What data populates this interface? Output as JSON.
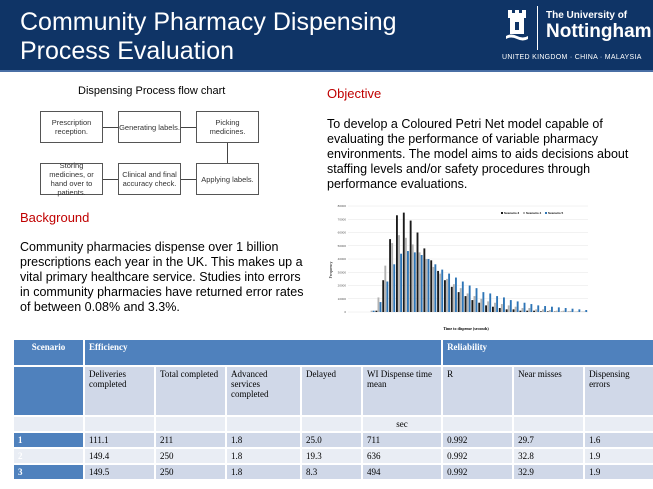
{
  "header": {
    "title": "Community Pharmacy Dispensing Process Evaluation",
    "logo": {
      "line1": "The University of",
      "line2": "Nottingham",
      "line3": "UNITED KINGDOM · CHINA · MALAYSIA"
    }
  },
  "flowchart": {
    "title": "Dispensing Process flow chart",
    "steps": [
      "Prescription reception.",
      "Generating labels.",
      "Picking medicines.",
      "Applying labels.",
      "Clinical and final accuracy check.",
      "Storing medicines, or hand over to patients."
    ]
  },
  "objective": {
    "heading": "Objective",
    "text": "To develop a Coloured Petri Net model capable of evaluating the performance of variable pharmacy environments. The model aims to aids decisions about staffing levels and/or safety procedures through performance evaluations."
  },
  "background": {
    "heading": "Background",
    "text": "Community pharmacies dispense over 1 billion prescriptions each year in the UK. This makes up a vital primary healthcare service. Studies into errors in community pharmacies have returned error rates of between 0.08% and 3.3%."
  },
  "chart_data": {
    "type": "bar",
    "xlabel": "Time to dispense (seconds)",
    "ylabel": "Frequency",
    "ylim": [
      0,
      80000
    ],
    "yticks": [
      0,
      10000,
      20000,
      30000,
      40000,
      50000,
      60000,
      70000,
      80000
    ],
    "grid": true,
    "legend": "top-right",
    "colors": [
      "#1a1a1a",
      "#b3b3b3",
      "#2e75b6"
    ],
    "series": [
      {
        "name": "Scenario 3",
        "values": [
          0,
          0,
          0,
          0,
          1000,
          24000,
          55000,
          73000,
          75000,
          69000,
          60000,
          48000,
          39000,
          31000,
          24000,
          19000,
          15000,
          12000,
          9000,
          7000,
          5000,
          4000,
          3000,
          2000,
          2000,
          1000,
          1000,
          1000,
          500,
          500,
          300,
          200,
          200,
          100,
          100
        ]
      },
      {
        "name": "Scenario 4",
        "values": [
          0,
          0,
          0,
          1000,
          11000,
          35000,
          52000,
          58000,
          56000,
          51000,
          45000,
          40000,
          34000,
          29000,
          25000,
          21000,
          18000,
          14000,
          12000,
          10000,
          8000,
          7000,
          6000,
          5000,
          4000,
          3000,
          3000,
          2000,
          2000,
          1500,
          1000,
          1000,
          800,
          500,
          400
        ]
      },
      {
        "name": "Scenario 5",
        "values": [
          0,
          0,
          0,
          1000,
          7500,
          23000,
          36000,
          44000,
          46000,
          45000,
          43000,
          40000,
          36000,
          32000,
          29000,
          26000,
          23000,
          20000,
          18000,
          15000,
          14000,
          12000,
          11000,
          9000,
          8000,
          7000,
          6000,
          5000,
          4500,
          4000,
          3500,
          3000,
          2500,
          2000,
          1500
        ]
      }
    ]
  },
  "table": {
    "group_headers": [
      "Scenario",
      "Efficiency",
      "Reliability"
    ],
    "columns": [
      "Deliveries completed",
      "Total completed",
      "Advanced services completed",
      "Delayed",
      "WI    Dispense time mean",
      "R",
      "Near misses",
      "Dispensing errors"
    ],
    "units": [
      "",
      "",
      "",
      "",
      "sec",
      "",
      "",
      ""
    ],
    "rows": [
      {
        "scenario": "1",
        "values": [
          "111.1",
          "211",
          "1.8",
          "25.0",
          "711",
          "0.992",
          "29.7",
          "1.6"
        ]
      },
      {
        "scenario": "2",
        "values": [
          "149.4",
          "250",
          "1.8",
          "19.3",
          "636",
          "0.992",
          "32.8",
          "1.9"
        ]
      },
      {
        "scenario": "3",
        "values": [
          "149.5",
          "250",
          "1.8",
          "8.3",
          "494",
          "0.992",
          "32.9",
          "1.9"
        ]
      }
    ]
  }
}
